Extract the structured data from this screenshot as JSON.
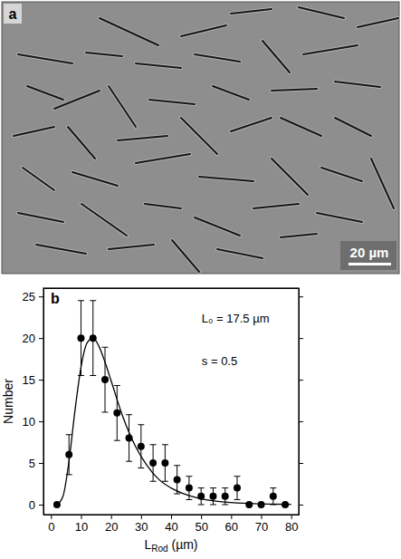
{
  "image_panel": {
    "label": "a",
    "scale_bar": "20 µm"
  },
  "chart_data": {
    "type": "scatter",
    "panel_label": "b",
    "x_label": [
      "L",
      "Rod",
      " (µm)"
    ],
    "y_label": "Number",
    "annotations": [
      "L₀ = 17.5 µm",
      "s = 0.5"
    ],
    "xlim": [
      -2.5,
      82.5
    ],
    "ylim": [
      -1.2,
      26
    ],
    "xticks": [
      0,
      10,
      20,
      30,
      40,
      50,
      60,
      70,
      80
    ],
    "yticks": [
      0,
      5,
      10,
      15,
      20,
      25
    ],
    "series": [
      {
        "type": "scatter",
        "marker": "circle",
        "color": "#000000",
        "x": [
          2,
          6,
          10,
          14,
          18,
          22,
          26,
          30,
          34,
          38,
          42,
          46,
          50,
          54,
          58,
          62,
          66,
          70,
          74,
          78
        ],
        "values": [
          0,
          6,
          20,
          20,
          15,
          11,
          8,
          7,
          5,
          5,
          3,
          2,
          1,
          1,
          1,
          2,
          0,
          0,
          1,
          0
        ],
        "errors": [
          0,
          2.4,
          4.5,
          4.5,
          3.9,
          3.3,
          2.8,
          2.6,
          2.2,
          2.2,
          1.7,
          1.4,
          1,
          1,
          1,
          1.4,
          0,
          0,
          1,
          0
        ]
      },
      {
        "type": "line",
        "line_style": "solid",
        "color": "#000000",
        "x": [
          2,
          4,
          6,
          8,
          10,
          12,
          14,
          16,
          18,
          20,
          24,
          28,
          32,
          36,
          40,
          45,
          50,
          60,
          70,
          80
        ],
        "values": [
          0,
          1.0,
          5.2,
          11.3,
          16.5,
          19.4,
          20.0,
          19.0,
          17.1,
          14.9,
          10.5,
          7.1,
          4.7,
          3.0,
          2.0,
          1.2,
          0.7,
          0.25,
          0.09,
          0.04
        ]
      }
    ]
  }
}
